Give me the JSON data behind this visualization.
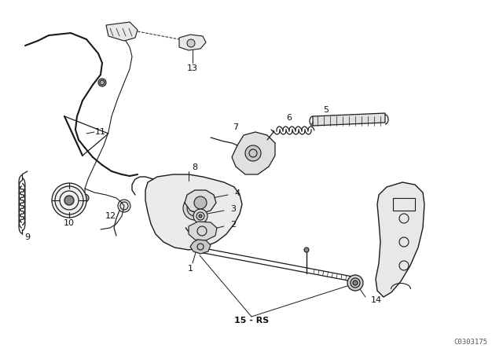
{
  "background_color": "#ffffff",
  "line_color": "#1a1a1a",
  "label_color": "#111111",
  "watermark": "C0303175",
  "figsize": [
    6.4,
    4.48
  ],
  "dpi": 100
}
